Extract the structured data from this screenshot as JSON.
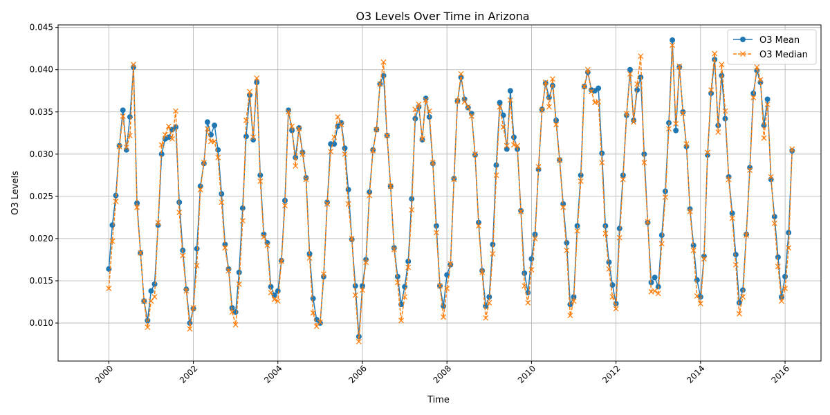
{
  "chart_data": {
    "type": "line",
    "title": "O3 Levels Over Time in Arizona",
    "xlabel": "Time",
    "ylabel": "O3 Levels",
    "xlim": [
      1998.8,
      2016.85
    ],
    "ylim": [
      0.0055,
      0.0453
    ],
    "x_ticks": [
      "2000",
      "2002",
      "2004",
      "2006",
      "2008",
      "2010",
      "2012",
      "2014",
      "2016"
    ],
    "y_ticks": [
      "0.010",
      "0.015",
      "0.020",
      "0.025",
      "0.030",
      "0.035",
      "0.040",
      "0.045"
    ],
    "grid": true,
    "legend_position": "top-right",
    "x_start_year": 2000,
    "x_step_months": 1,
    "series": [
      {
        "name": "O3 Mean",
        "color": "#1f77b4",
        "style": "solid",
        "marker": "circle",
        "values": [
          0.0164,
          0.0216,
          0.0251,
          0.031,
          0.0352,
          0.0305,
          0.0344,
          0.0403,
          0.0242,
          0.0183,
          0.0126,
          0.0103,
          0.0138,
          0.0146,
          0.0216,
          0.03,
          0.0318,
          0.032,
          0.0329,
          0.0332,
          0.0243,
          0.0186,
          0.014,
          0.01,
          0.0117,
          0.0188,
          0.0262,
          0.0289,
          0.0338,
          0.0323,
          0.0334,
          0.0305,
          0.0253,
          0.0193,
          0.0164,
          0.0118,
          0.0113,
          0.016,
          0.0236,
          0.0321,
          0.037,
          0.0317,
          0.0385,
          0.0275,
          0.0205,
          0.0195,
          0.0143,
          0.0133,
          0.0138,
          0.0174,
          0.0245,
          0.0352,
          0.0328,
          0.0296,
          0.0331,
          0.0302,
          0.0272,
          0.0182,
          0.0129,
          0.0104,
          0.01,
          0.0155,
          0.0243,
          0.0312,
          0.0312,
          0.0333,
          0.0337,
          0.0307,
          0.0258,
          0.0199,
          0.0144,
          0.0084,
          0.0144,
          0.0175,
          0.0255,
          0.0305,
          0.0329,
          0.0383,
          0.0393,
          0.0322,
          0.0262,
          0.0189,
          0.0155,
          0.0122,
          0.0143,
          0.0173,
          0.0247,
          0.0342,
          0.0356,
          0.0317,
          0.0366,
          0.0344,
          0.0289,
          0.0215,
          0.0144,
          0.012,
          0.0157,
          0.0169,
          0.0271,
          0.0363,
          0.0391,
          0.0365,
          0.0355,
          0.0348,
          0.0299,
          0.0219,
          0.0162,
          0.012,
          0.0131,
          0.0193,
          0.0287,
          0.0361,
          0.0346,
          0.0306,
          0.0375,
          0.032,
          0.0306,
          0.0233,
          0.0159,
          0.0136,
          0.0176,
          0.0205,
          0.0282,
          0.0353,
          0.0384,
          0.0367,
          0.0381,
          0.034,
          0.0293,
          0.0241,
          0.0195,
          0.0122,
          0.0131,
          0.0215,
          0.0275,
          0.038,
          0.0397,
          0.0376,
          0.0375,
          0.0378,
          0.0301,
          0.0215,
          0.0172,
          0.0145,
          0.0123,
          0.0212,
          0.0275,
          0.0346,
          0.04,
          0.034,
          0.0376,
          0.0391,
          0.03,
          0.0219,
          0.0148,
          0.0154,
          0.0143,
          0.0204,
          0.0256,
          0.0337,
          0.0435,
          0.0328,
          0.0403,
          0.035,
          0.0309,
          0.0235,
          0.0192,
          0.0151,
          0.0131,
          0.0179,
          0.0299,
          0.0372,
          0.0412,
          0.0334,
          0.0393,
          0.0342,
          0.0273,
          0.023,
          0.0181,
          0.0124,
          0.0139,
          0.0205,
          0.0284,
          0.0372,
          0.0399,
          0.0385,
          0.0334,
          0.0365,
          0.027,
          0.0226,
          0.0178,
          0.0131,
          0.0155,
          0.0207,
          0.0304
        ]
      },
      {
        "name": "O3 Median",
        "color": "#ff7f0e",
        "style": "dashed",
        "marker": "x",
        "values": [
          0.0141,
          0.0197,
          0.0244,
          0.0309,
          0.0345,
          0.0308,
          0.0322,
          0.0406,
          0.0237,
          0.0183,
          0.0126,
          0.0095,
          0.0126,
          0.0131,
          0.0219,
          0.0311,
          0.0323,
          0.0333,
          0.0318,
          0.0351,
          0.0231,
          0.018,
          0.0138,
          0.0093,
          0.0118,
          0.0168,
          0.0258,
          0.029,
          0.033,
          0.0315,
          0.0315,
          0.0296,
          0.0243,
          0.0189,
          0.0162,
          0.0113,
          0.0098,
          0.0146,
          0.0221,
          0.034,
          0.0374,
          0.032,
          0.039,
          0.0268,
          0.0202,
          0.0192,
          0.0136,
          0.0128,
          0.0126,
          0.0173,
          0.0239,
          0.035,
          0.0333,
          0.0286,
          0.033,
          0.03,
          0.027,
          0.0177,
          0.0112,
          0.0096,
          0.0101,
          0.0158,
          0.0241,
          0.0303,
          0.032,
          0.0344,
          0.0335,
          0.03,
          0.0241,
          0.02,
          0.0133,
          0.0078,
          0.0139,
          0.0172,
          0.0251,
          0.0304,
          0.0329,
          0.0383,
          0.0409,
          0.0322,
          0.0262,
          0.0187,
          0.0148,
          0.0103,
          0.0131,
          0.0166,
          0.0234,
          0.0353,
          0.0359,
          0.0318,
          0.0364,
          0.0351,
          0.029,
          0.0207,
          0.0144,
          0.0107,
          0.0141,
          0.017,
          0.027,
          0.0363,
          0.0395,
          0.0362,
          0.0356,
          0.0345,
          0.03,
          0.0215,
          0.016,
          0.0106,
          0.0124,
          0.0182,
          0.0275,
          0.0356,
          0.0332,
          0.031,
          0.0364,
          0.0311,
          0.031,
          0.0232,
          0.0144,
          0.0124,
          0.0163,
          0.02,
          0.0285,
          0.0352,
          0.0385,
          0.0356,
          0.0389,
          0.0335,
          0.0293,
          0.0237,
          0.0186,
          0.0109,
          0.0126,
          0.0209,
          0.0268,
          0.038,
          0.04,
          0.0374,
          0.0361,
          0.0362,
          0.029,
          0.0206,
          0.0164,
          0.0131,
          0.0117,
          0.0201,
          0.027,
          0.0348,
          0.0395,
          0.0338,
          0.0383,
          0.0416,
          0.029,
          0.022,
          0.0137,
          0.0138,
          0.0135,
          0.0194,
          0.0249,
          0.033,
          0.0429,
          0.0336,
          0.0404,
          0.0348,
          0.0312,
          0.0232,
          0.0186,
          0.0132,
          0.0123,
          0.0176,
          0.0302,
          0.0376,
          0.0419,
          0.0326,
          0.0406,
          0.0351,
          0.027,
          0.0224,
          0.0169,
          0.0111,
          0.0131,
          0.0204,
          0.0281,
          0.0367,
          0.0403,
          0.0388,
          0.0319,
          0.0359,
          0.0273,
          0.0218,
          0.0167,
          0.0126,
          0.0141,
          0.0189,
          0.0306
        ]
      }
    ]
  }
}
